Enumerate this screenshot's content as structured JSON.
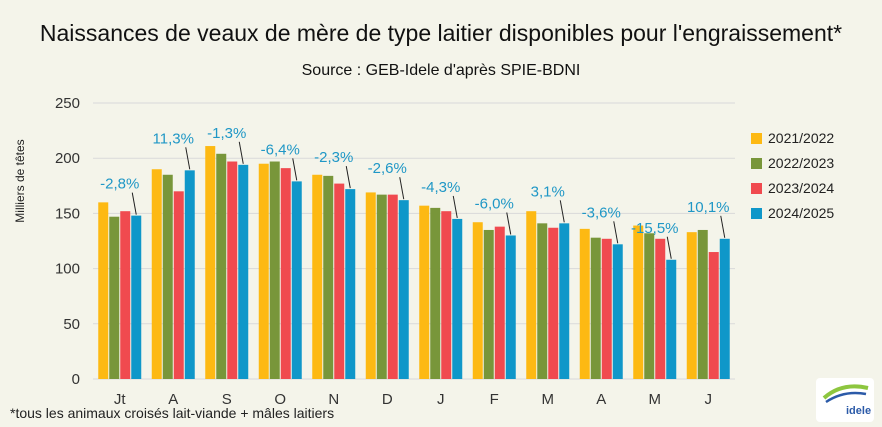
{
  "chart_data": {
    "type": "bar",
    "title": "Naissances de veaux de mère de type laitier disponibles pour l'engraissement*",
    "subtitle": "Source : GEB-Idele d'après SPIE-BDNI",
    "ylabel": "Milliers de têtes",
    "ylim": [
      0,
      250
    ],
    "yticks": [
      0,
      50,
      100,
      150,
      200,
      250
    ],
    "grid": true,
    "legend_position": "right",
    "categories": [
      "Jt",
      "A",
      "S",
      "O",
      "N",
      "D",
      "J",
      "F",
      "M",
      "A",
      "M",
      "J"
    ],
    "series": [
      {
        "name": "2021/2022",
        "color": "#fdb913",
        "values": [
          160,
          190,
          211,
          195,
          185,
          169,
          157,
          142,
          152,
          136,
          139,
          133
        ]
      },
      {
        "name": "2022/2023",
        "color": "#78963a",
        "values": [
          147,
          185,
          204,
          197,
          184,
          167,
          155,
          135,
          141,
          128,
          132,
          135
        ]
      },
      {
        "name": "2023/2024",
        "color": "#f04a4f",
        "values": [
          152,
          170,
          197,
          191,
          177,
          167,
          152,
          138,
          137,
          127,
          127,
          115
        ]
      },
      {
        "name": "2024/2025",
        "color": "#0f97c9",
        "values": [
          148,
          189,
          194,
          179,
          172,
          162,
          145,
          130,
          141,
          122,
          108,
          127
        ]
      }
    ],
    "annotations": [
      "-2,8%",
      "11,3%",
      "-1,3%",
      "-6,4%",
      "-2,3%",
      "-2,6%",
      "-4,3%",
      "-6,0%",
      "3,1%",
      "-3,6%",
      "-15,5%",
      "10,1%"
    ],
    "annotation_color": "#1f97c6"
  },
  "footnote": "*tous les animaux croisés lait-viande + mâles laitiers",
  "logo": {
    "text": "idele"
  }
}
